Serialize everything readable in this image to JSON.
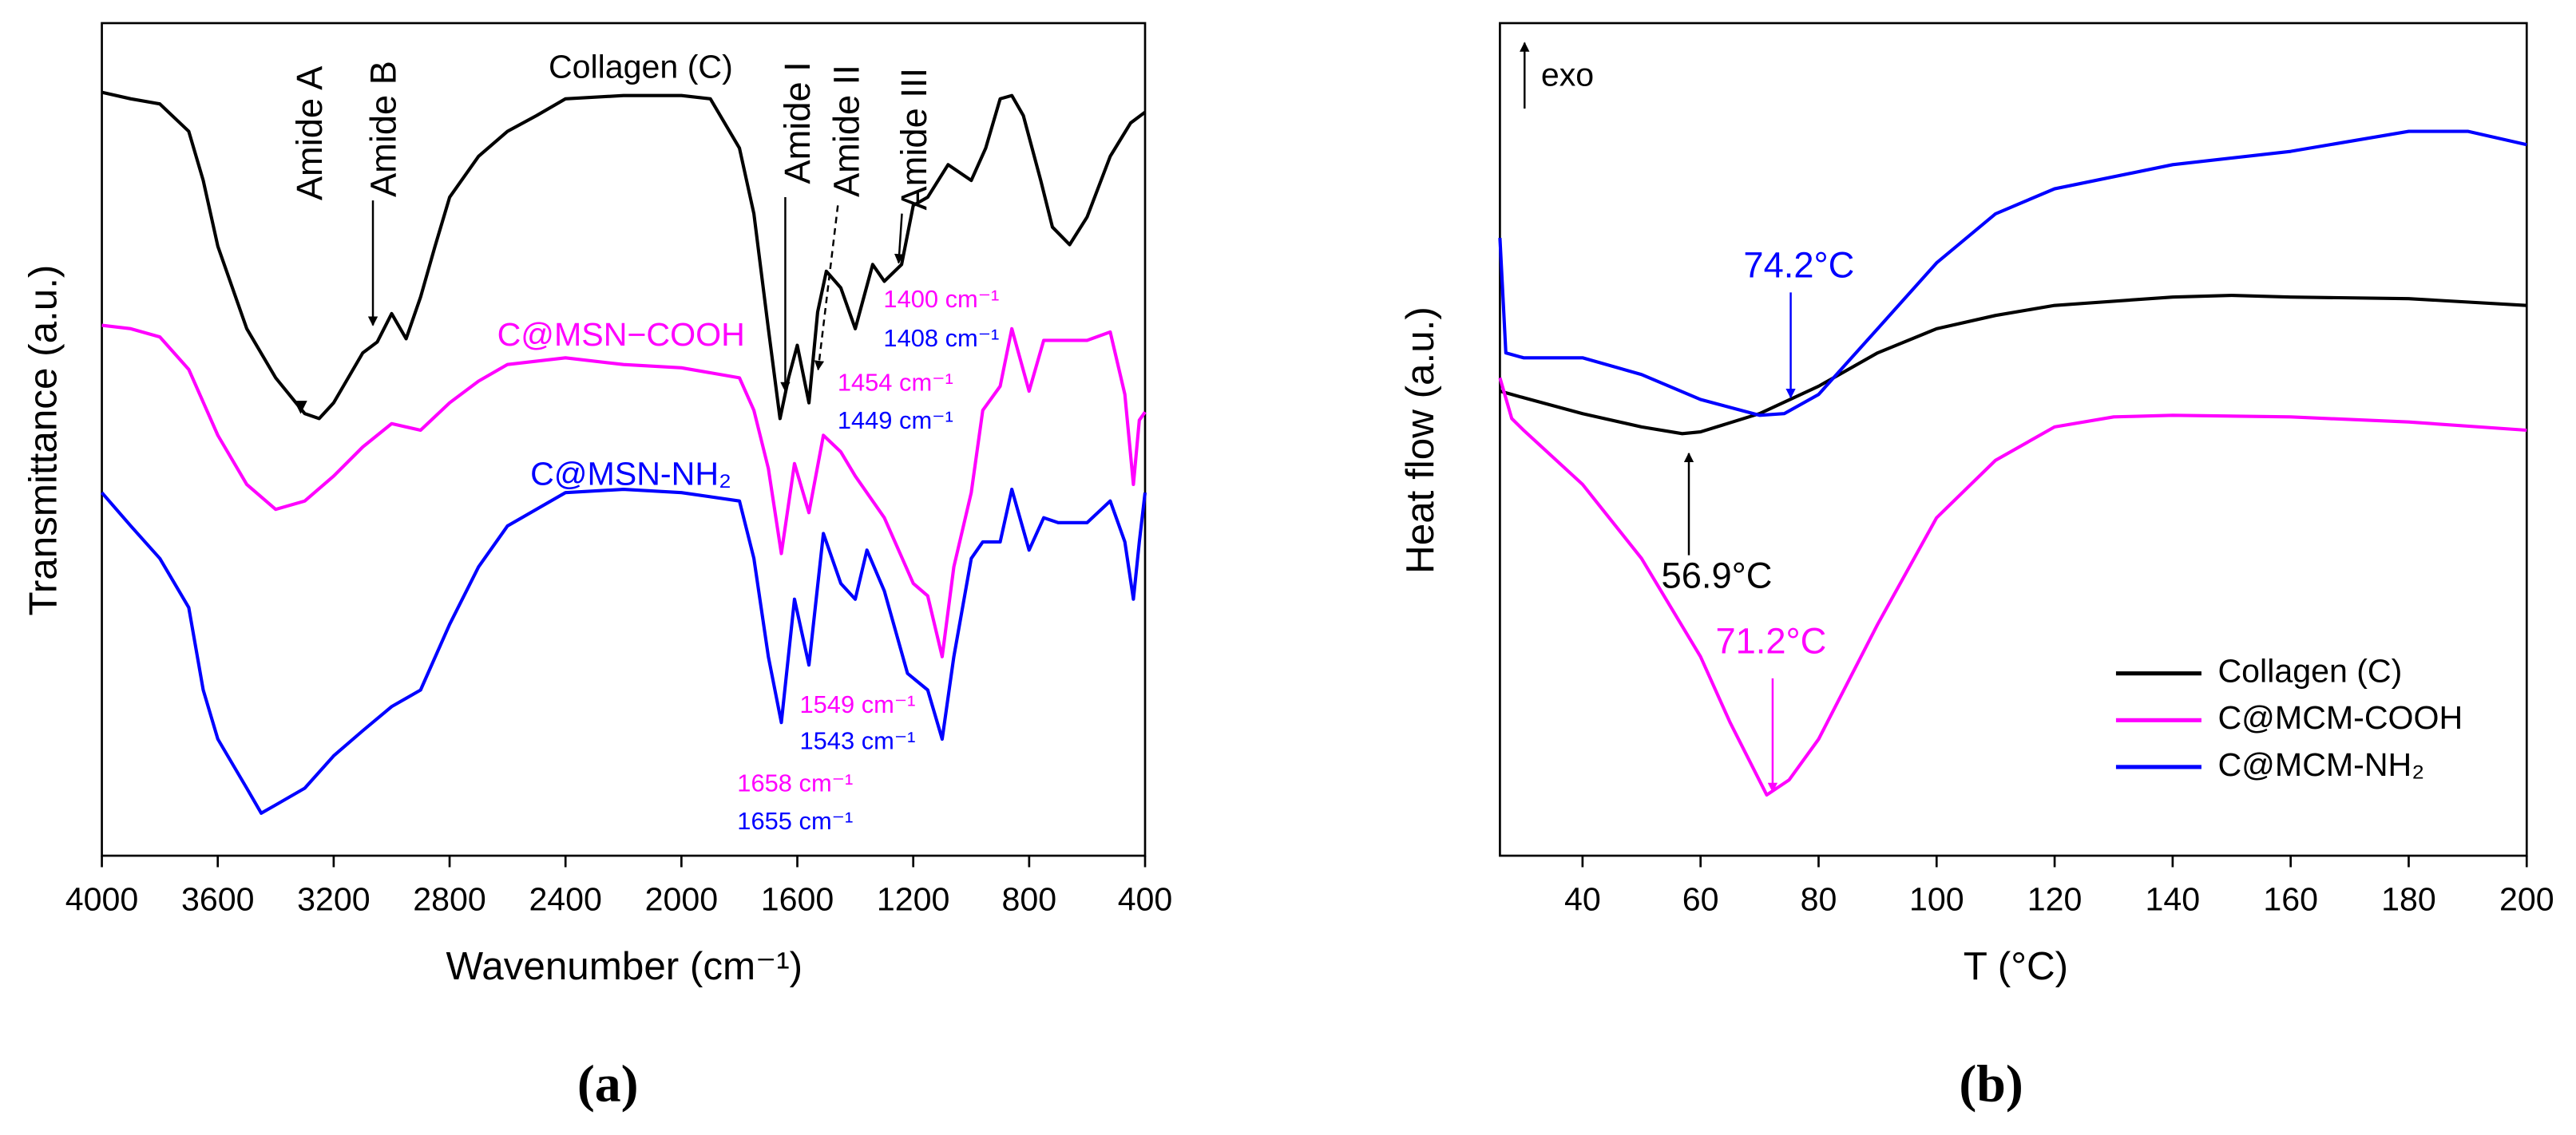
{
  "chart_data": [
    {
      "type": "line",
      "label": "(a)",
      "x_label": "Wavenumber (cm⁻¹)",
      "y_label": "Transmittance (a.u.)",
      "xlim": [
        4000,
        400
      ],
      "ylim": [
        0,
        100
      ],
      "xticks": [
        4000,
        3600,
        3200,
        2800,
        2400,
        2000,
        1600,
        1200,
        800,
        400
      ],
      "series": [
        {
          "name": "Collagen (C)",
          "color": "#000000",
          "x": [
            4000,
            3900,
            3800,
            3700,
            3650,
            3600,
            3500,
            3400,
            3300,
            3250,
            3200,
            3100,
            3050,
            3000,
            2950,
            2900,
            2850,
            2800,
            2700,
            2600,
            2500,
            2400,
            2200,
            2000,
            1900,
            1800,
            1750,
            1700,
            1660,
            1630,
            1600,
            1560,
            1530,
            1500,
            1450,
            1400,
            1340,
            1300,
            1240,
            1200,
            1150,
            1080,
            1000,
            950,
            900,
            860,
            820,
            760,
            720,
            660,
            600,
            520,
            450,
            400
          ],
          "values": [
            91.7,
            90.9,
            90.3,
            87.0,
            81.1,
            73.2,
            63.3,
            57.4,
            53.1,
            52.5,
            54.4,
            60.4,
            61.7,
            65.1,
            62.1,
            67.1,
            73.2,
            79.1,
            84.0,
            87.0,
            88.9,
            90.9,
            91.3,
            91.3,
            90.9,
            85.0,
            77.1,
            63.3,
            52.5,
            57.4,
            61.3,
            54.4,
            65.3,
            70.2,
            68.2,
            63.3,
            71.0,
            69.0,
            71.0,
            78.1,
            79.1,
            83.0,
            81.1,
            85.0,
            90.9,
            91.3,
            88.9,
            81.1,
            75.5,
            73.4,
            76.7,
            84.0,
            88.0,
            89.3
          ]
        },
        {
          "name": "C@MSN−COOH",
          "color": "#ff00ff",
          "x": [
            4000,
            3900,
            3800,
            3700,
            3600,
            3500,
            3400,
            3300,
            3200,
            3100,
            3000,
            2900,
            2800,
            2700,
            2600,
            2400,
            2200,
            2000,
            1800,
            1750,
            1700,
            1655,
            1610,
            1560,
            1510,
            1450,
            1400,
            1300,
            1200,
            1150,
            1100,
            1060,
            1000,
            960,
            900,
            860,
            800,
            750,
            700,
            600,
            520,
            470,
            440,
            420,
            400
          ],
          "values": [
            63.7,
            63.3,
            62.3,
            58.4,
            50.5,
            44.6,
            41.6,
            42.6,
            45.6,
            49.1,
            51.9,
            51.1,
            54.4,
            57.0,
            59.0,
            59.8,
            59.0,
            58.6,
            57.4,
            53.5,
            46.5,
            36.3,
            47.1,
            41.2,
            50.5,
            48.5,
            45.6,
            40.6,
            32.7,
            31.2,
            23.9,
            34.7,
            43.6,
            53.5,
            56.4,
            63.3,
            55.8,
            61.9,
            61.9,
            61.9,
            62.9,
            55.4,
            44.6,
            52.3,
            53.3
          ]
        },
        {
          "name": "C@MSN-NH₂",
          "color": "#0000ff",
          "x": [
            4000,
            3900,
            3800,
            3700,
            3650,
            3600,
            3500,
            3450,
            3400,
            3300,
            3200,
            3100,
            3000,
            2900,
            2800,
            2700,
            2600,
            2400,
            2200,
            2000,
            1800,
            1750,
            1700,
            1655,
            1610,
            1560,
            1510,
            1450,
            1400,
            1360,
            1300,
            1220,
            1150,
            1100,
            1060,
            1000,
            960,
            900,
            860,
            800,
            750,
            700,
            600,
            520,
            470,
            440,
            420,
            400
          ],
          "values": [
            43.6,
            39.6,
            35.7,
            29.8,
            19.9,
            14.0,
            8.1,
            5.1,
            6.1,
            8.1,
            12.0,
            15.0,
            17.9,
            19.9,
            27.8,
            34.7,
            39.6,
            43.6,
            44.0,
            43.6,
            42.6,
            35.7,
            23.9,
            16.0,
            30.8,
            22.9,
            38.7,
            32.7,
            30.8,
            36.7,
            31.8,
            21.9,
            19.9,
            14.0,
            23.9,
            35.7,
            37.7,
            37.7,
            44.0,
            36.7,
            40.6,
            40.0,
            40.0,
            42.6,
            37.7,
            30.8,
            37.7,
            43.6
          ]
        }
      ],
      "annotations": [
        {
          "text": "Amide A",
          "color": "#000000"
        },
        {
          "text": "Amide B",
          "color": "#000000"
        },
        {
          "text": "Amide I",
          "color": "#000000"
        },
        {
          "text": "Amide II",
          "color": "#000000"
        },
        {
          "text": "Amide III",
          "color": "#000000"
        },
        {
          "text": "1400 cm⁻¹",
          "color": "#ff00ff"
        },
        {
          "text": "1408 cm⁻¹",
          "color": "#0000ff"
        },
        {
          "text": "1454 cm⁻¹",
          "color": "#ff00ff"
        },
        {
          "text": "1449 cm⁻¹",
          "color": "#0000ff"
        },
        {
          "text": "1549 cm⁻¹",
          "color": "#ff00ff"
        },
        {
          "text": "1543 cm⁻¹",
          "color": "#0000ff"
        },
        {
          "text": "1658 cm⁻¹",
          "color": "#ff00ff"
        },
        {
          "text": "1655 cm⁻¹",
          "color": "#0000ff"
        }
      ]
    },
    {
      "type": "line",
      "label": "(b)",
      "x_label": "T (°C)",
      "y_label": "Heat flow (a.u.)",
      "xlim": [
        26,
        200
      ],
      "ylim": [
        0,
        100
      ],
      "xticks": [
        40,
        60,
        80,
        100,
        120,
        140,
        160,
        180,
        200
      ],
      "legend": "lower right",
      "series": [
        {
          "name": "Collagen (C)",
          "color": "#000000",
          "x": [
            26,
            30,
            40,
            50,
            56.9,
            60,
            70,
            80,
            90,
            100,
            110,
            120,
            140,
            150,
            160,
            180,
            200
          ],
          "values": [
            55.8,
            55.0,
            53.1,
            51.5,
            50.7,
            50.9,
            53.1,
            56.4,
            60.4,
            63.3,
            64.9,
            66.1,
            67.1,
            67.3,
            67.1,
            66.9,
            66.1
          ]
        },
        {
          "name": "C@MCM-COOH",
          "color": "#ff00ff",
          "x": [
            26,
            28,
            30,
            40,
            50,
            60,
            65,
            71.2,
            75,
            80,
            90,
            100,
            110,
            120,
            130,
            140,
            160,
            180,
            200
          ],
          "values": [
            57.4,
            52.5,
            51.1,
            44.6,
            35.7,
            23.9,
            16.0,
            7.3,
            9.1,
            14.0,
            27.8,
            40.6,
            47.5,
            51.5,
            52.7,
            52.9,
            52.7,
            52.1,
            51.1
          ]
        },
        {
          "name": "C@MCM-NH₂",
          "color": "#0000ff",
          "x": [
            26,
            27,
            30,
            40,
            50,
            60,
            70,
            74.2,
            80,
            90,
            100,
            110,
            120,
            140,
            160,
            180,
            190,
            200
          ],
          "values": [
            74.2,
            60.4,
            59.8,
            59.8,
            57.8,
            54.8,
            52.9,
            53.1,
            55.4,
            63.3,
            71.2,
            77.1,
            80.1,
            83.0,
            84.6,
            87.0,
            87.0,
            85.4
          ]
        }
      ],
      "annotations": [
        {
          "text": "exo",
          "color": "#000000"
        },
        {
          "text": "74.2°C",
          "color": "#0000ff"
        },
        {
          "text": "56.9°C",
          "color": "#000000"
        },
        {
          "text": "71.2°C",
          "color": "#ff00ff"
        }
      ]
    }
  ]
}
